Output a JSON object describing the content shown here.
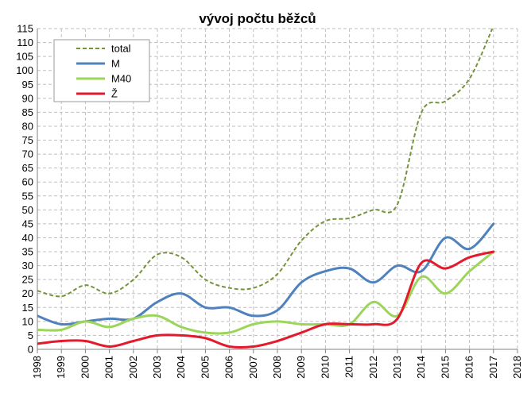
{
  "chart_data": {
    "type": "line",
    "title": "vývoj počtu běžců",
    "xlabel": "",
    "ylabel": "",
    "xlim": [
      1998,
      2018
    ],
    "ylim": [
      0,
      115
    ],
    "x_ticks": [
      1998,
      1999,
      2000,
      2001,
      2002,
      2003,
      2004,
      2005,
      2006,
      2007,
      2008,
      2009,
      2010,
      2011,
      2012,
      2013,
      2014,
      2015,
      2016,
      2017,
      2018
    ],
    "y_ticks": [
      0,
      5,
      10,
      15,
      20,
      25,
      30,
      35,
      40,
      45,
      50,
      55,
      60,
      65,
      70,
      75,
      80,
      85,
      90,
      95,
      100,
      105,
      110,
      115
    ],
    "grid": true,
    "legend": "top-left",
    "x": [
      1998,
      1999,
      2000,
      2001,
      2002,
      2003,
      2004,
      2005,
      2006,
      2007,
      2008,
      2009,
      2010,
      2011,
      2012,
      2013,
      2014,
      2015,
      2016,
      2017
    ],
    "series": [
      {
        "name": "total",
        "color": "#76933c",
        "dashed": true,
        "values": [
          21,
          19,
          23,
          20,
          25,
          34,
          33,
          25,
          22,
          22,
          27,
          39,
          46,
          47,
          50,
          52,
          85,
          89,
          97,
          116
        ]
      },
      {
        "name": "M",
        "color": "#4f81bd",
        "dashed": false,
        "values": [
          12,
          9,
          10,
          11,
          11,
          17,
          20,
          15,
          15,
          12,
          14,
          24,
          28,
          29,
          24,
          30,
          28,
          40,
          36,
          45
        ]
      },
      {
        "name": "M40",
        "color": "#9bd65a",
        "dashed": false,
        "values": [
          7,
          7,
          10,
          8,
          11,
          12,
          8,
          6,
          6,
          9,
          10,
          9,
          9,
          9,
          17,
          12,
          26,
          20,
          28,
          35
        ]
      },
      {
        "name": "Ž",
        "color": "#e31a2c",
        "dashed": false,
        "values": [
          2,
          3,
          3,
          1,
          3,
          5,
          5,
          4,
          1,
          1,
          3,
          6,
          9,
          9,
          9,
          11,
          31,
          29,
          33,
          35
        ]
      }
    ]
  }
}
